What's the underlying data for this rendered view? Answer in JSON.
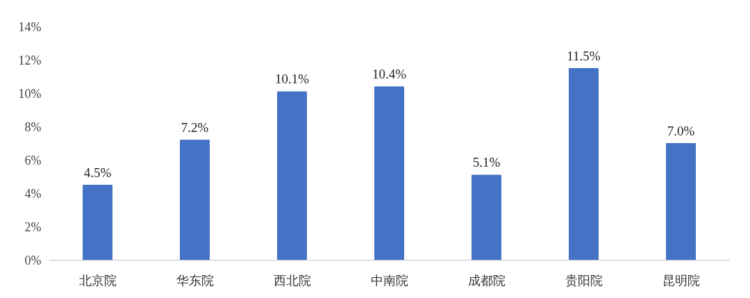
{
  "chart_data": {
    "type": "bar",
    "categories": [
      "北京院",
      "华东院",
      "西北院",
      "中南院",
      "成都院",
      "贵阳院",
      "昆明院"
    ],
    "values": [
      4.5,
      7.2,
      10.1,
      10.4,
      5.1,
      11.5,
      7.0
    ],
    "value_labels": [
      "4.5%",
      "7.2%",
      "10.1%",
      "10.4%",
      "5.1%",
      "11.5%",
      "7.0%"
    ],
    "color": "#4472c4",
    "ylim": [
      0,
      14
    ],
    "yticks": [
      {
        "value": 0,
        "label": "0%"
      },
      {
        "value": 2,
        "label": "2%"
      },
      {
        "value": 4,
        "label": "4%"
      },
      {
        "value": 6,
        "label": "6%"
      },
      {
        "value": 8,
        "label": "8%"
      },
      {
        "value": 10,
        "label": "10%"
      },
      {
        "value": 12,
        "label": "12%"
      },
      {
        "value": 14,
        "label": "14%"
      }
    ],
    "grid": false
  }
}
